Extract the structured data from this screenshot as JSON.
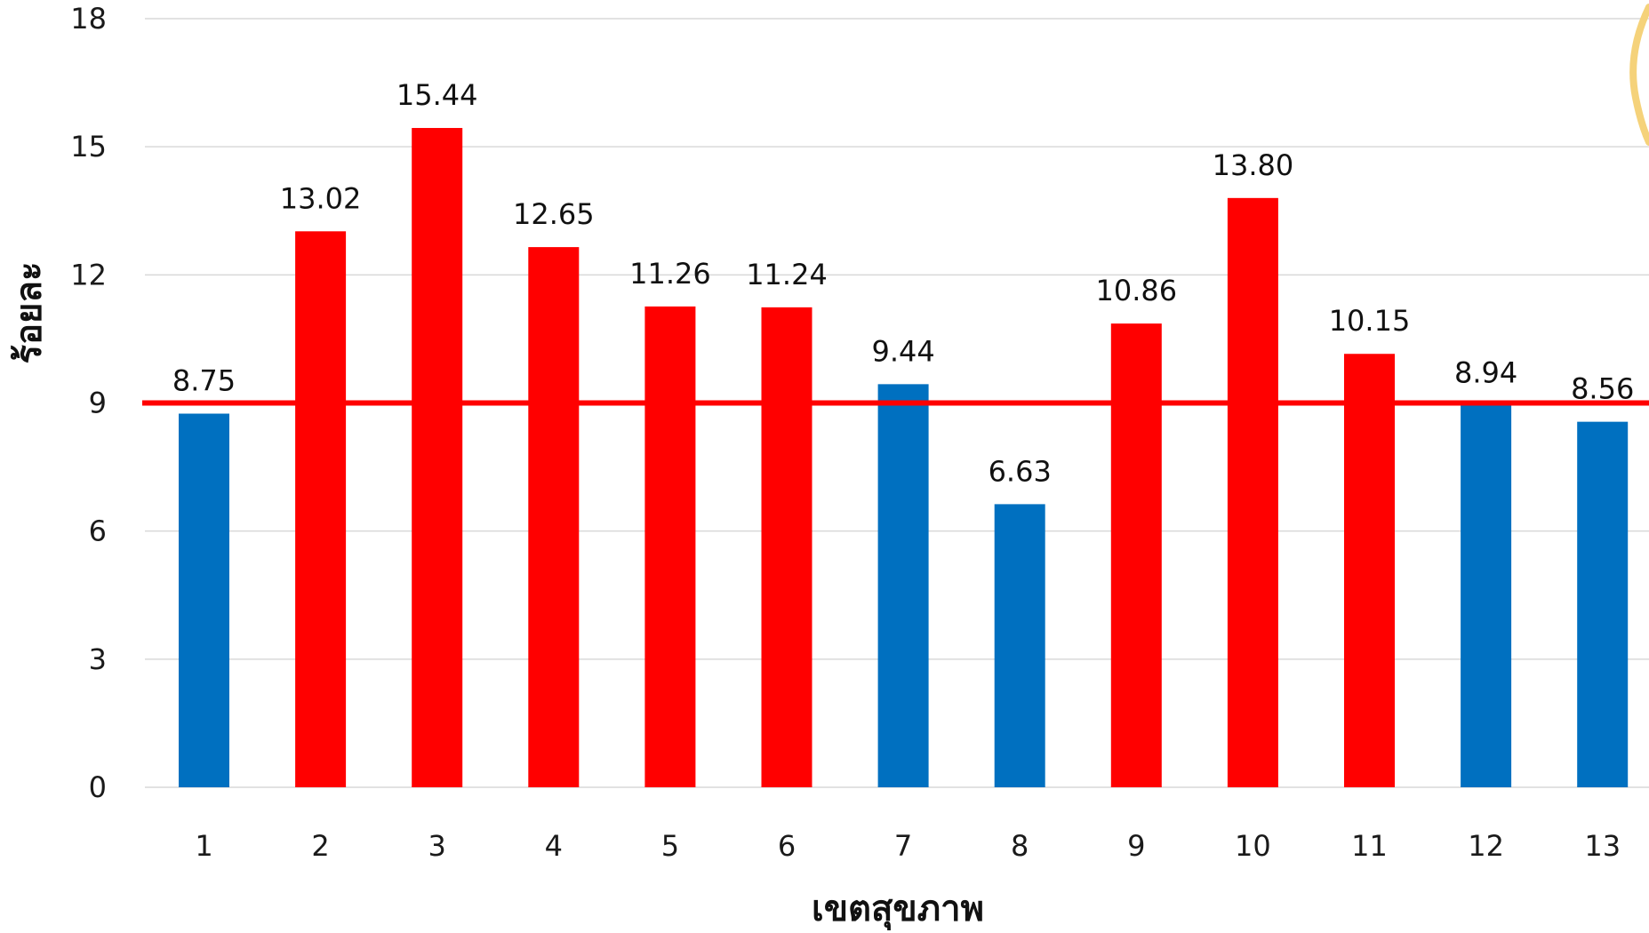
{
  "chart_data": {
    "type": "bar",
    "categories": [
      "1",
      "2",
      "3",
      "4",
      "5",
      "6",
      "7",
      "8",
      "9",
      "10",
      "11",
      "12",
      "13"
    ],
    "values": [
      8.75,
      13.02,
      15.44,
      12.65,
      11.26,
      11.24,
      9.44,
      6.63,
      10.86,
      13.8,
      10.15,
      8.94,
      8.56
    ],
    "value_labels": [
      "8.75",
      "13.02",
      "15.44",
      "12.65",
      "11.26",
      "11.24",
      "9.44",
      "6.63",
      "10.86",
      "13.80",
      "10.15",
      "8.94",
      "8.56"
    ],
    "bar_colors": [
      "#0070c0",
      "#ff0000",
      "#ff0000",
      "#ff0000",
      "#ff0000",
      "#ff0000",
      "#0070c0",
      "#0070c0",
      "#ff0000",
      "#ff0000",
      "#ff0000",
      "#0070c0",
      "#0070c0"
    ],
    "ylabel": "ร้อยละ",
    "xlabel": "เขตสุขภาพ",
    "ylim": [
      0,
      18
    ],
    "yticks": [
      "0",
      "3",
      "6",
      "9",
      "12",
      "15",
      "18"
    ],
    "reference_line": {
      "value": 9,
      "color": "#ff0000"
    },
    "grid": true
  },
  "colors": {
    "blue_bar": "#0070c0",
    "red_bar": "#ff0000",
    "decoration": "#f5d27a"
  }
}
